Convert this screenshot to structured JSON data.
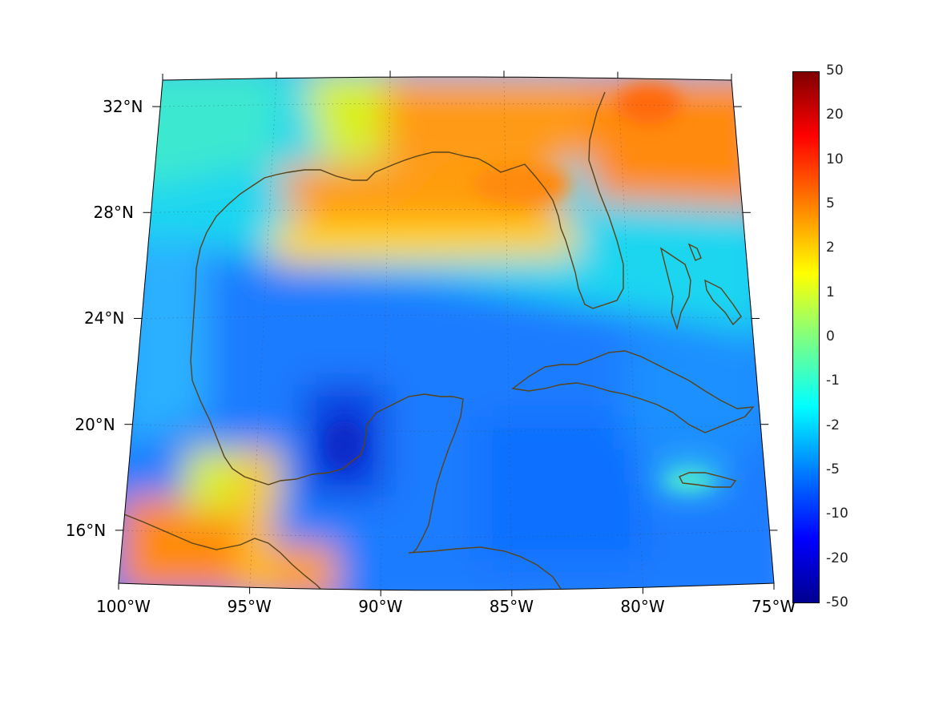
{
  "map": {
    "lon_min": -100,
    "lon_max": -75,
    "lat_min": 14,
    "lat_max": 33,
    "lon_ticks": [
      {
        "value": -100,
        "label": "100°W"
      },
      {
        "value": -95,
        "label": "95°W"
      },
      {
        "value": -90,
        "label": "90°W"
      },
      {
        "value": -85,
        "label": "85°W"
      },
      {
        "value": -80,
        "label": "80°W"
      },
      {
        "value": -75,
        "label": "75°W"
      }
    ],
    "lat_ticks": [
      {
        "value": 32,
        "label": "32°N"
      },
      {
        "value": 28,
        "label": "28°N"
      },
      {
        "value": 24,
        "label": "24°N"
      },
      {
        "value": 20,
        "label": "20°N"
      },
      {
        "value": 16,
        "label": "16°N"
      }
    ],
    "coast_color": "#5a4318",
    "grid": true
  },
  "colorbar": {
    "labels": [
      "50",
      "20",
      "10",
      "5",
      "2",
      "1",
      "0",
      "-1",
      "-2",
      "-5",
      "-10",
      "-20",
      "-50"
    ],
    "colormap": "jet"
  }
}
